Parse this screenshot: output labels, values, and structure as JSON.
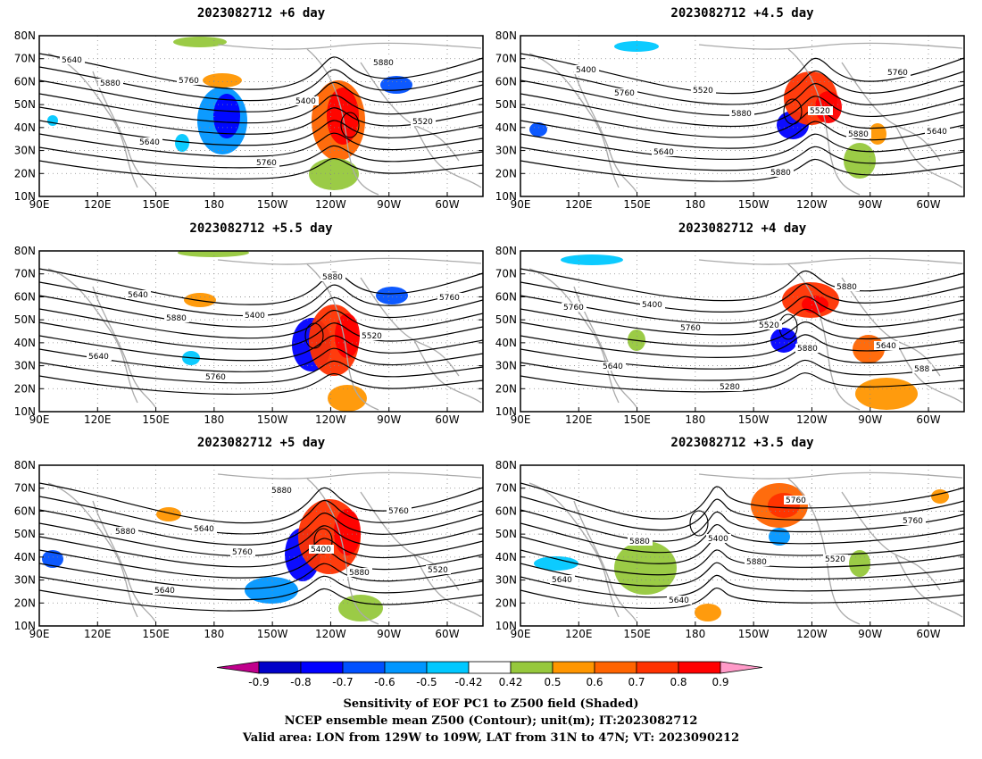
{
  "chart_data": {
    "type": "map-panels",
    "panels": [
      {
        "title": "2023082712 +6 day"
      },
      {
        "title": "2023082712 +4.5 day"
      },
      {
        "title": "2023082712 +5.5 day"
      },
      {
        "title": "2023082712 +4 day"
      },
      {
        "title": "2023082712 +5 day"
      },
      {
        "title": "2023082712 +3.5 day"
      }
    ],
    "x_ticks": [
      "90E",
      "120E",
      "150E",
      "180",
      "150W",
      "120W",
      "90W",
      "60W"
    ],
    "y_ticks": [
      "80N",
      "70N",
      "60N",
      "50N",
      "40N",
      "30N",
      "20N",
      "10N"
    ],
    "colorbar": {
      "labels": [
        "-0.9",
        "-0.8",
        "-0.7",
        "-0.6",
        "-0.5",
        "-0.42",
        "0.42",
        "0.5",
        "0.6",
        "0.7",
        "0.8",
        "0.9"
      ],
      "colors": [
        "#0000c8",
        "#0000ff",
        "#0050ff",
        "#0096ff",
        "#00c8ff",
        "#ffffff",
        "#96c83c",
        "#ff9600",
        "#ff6400",
        "#ff3200",
        "#ff0000"
      ],
      "low_extend_color": "#c0008c",
      "high_extend_color": "#ff9ac8"
    },
    "contour_labels": [
      [
        "5640",
        "5760",
        "5400",
        "5520",
        "5640",
        "5760",
        "5880",
        "5880"
      ],
      [
        "5400",
        "5520",
        "5520",
        "5640",
        "5640",
        "5880",
        "5760",
        "5760",
        "5880",
        "5880"
      ],
      [
        "5640",
        "5400",
        "5520",
        "5640",
        "5760",
        "5880",
        "5760",
        "5880"
      ],
      [
        "5400",
        "5520",
        "5640",
        "5640",
        "5280",
        "5880",
        "5760",
        "5760",
        "5880",
        "588"
      ],
      [
        "5640",
        "5400",
        "5520",
        "5640",
        "5880",
        "5760",
        "5880",
        "5760",
        "5880"
      ],
      [
        "5400",
        "5520",
        "5640",
        "5640",
        "5760",
        "5760",
        "5880",
        "5880"
      ]
    ]
  },
  "caption": {
    "line1": "Sensitivity of EOF PC1 to Z500 field (Shaded)",
    "line2": "NCEP ensemble mean Z500 (Contour); unit(m); IT:2023082712",
    "line3": "Valid area: LON from 129W to 109W, LAT from 31N to 47N; VT: 2023090212"
  }
}
